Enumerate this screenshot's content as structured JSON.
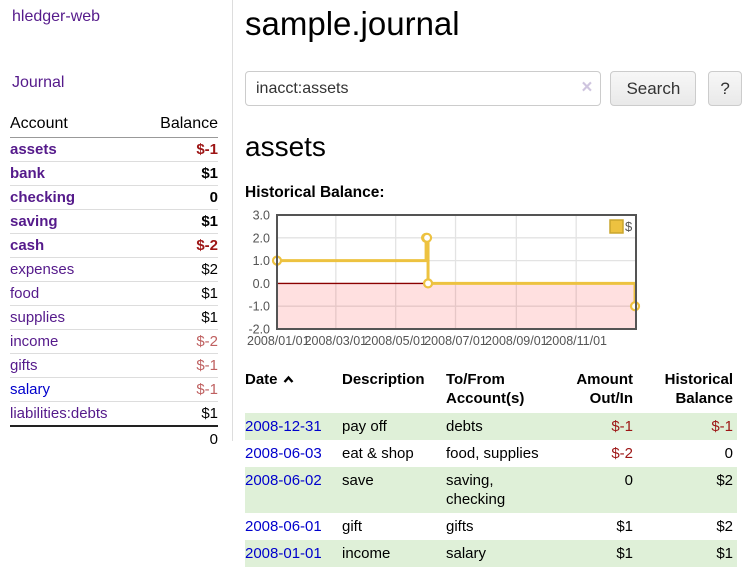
{
  "sidebar": {
    "brand": "hledger-web",
    "nav_journal": "Journal",
    "accounts_table": {
      "account_header": "Account",
      "balance_header": "Balance",
      "rows": [
        {
          "account": "assets",
          "balance": "$-1"
        },
        {
          "account": "bank",
          "balance": "$1"
        },
        {
          "account": "checking",
          "balance": "0"
        },
        {
          "account": "saving",
          "balance": "$1"
        },
        {
          "account": "cash",
          "balance": "$-2"
        },
        {
          "account": "expenses",
          "balance": "$2"
        },
        {
          "account": "food",
          "balance": "$1"
        },
        {
          "account": "supplies",
          "balance": "$1"
        },
        {
          "account": "income",
          "balance": "$-2"
        },
        {
          "account": "gifts",
          "balance": "$-1"
        },
        {
          "account": "salary",
          "balance": "$-1"
        },
        {
          "account": "liabilities:debts",
          "balance": "$1"
        }
      ],
      "total": "0"
    }
  },
  "header": {
    "title": "sample.journal"
  },
  "search": {
    "value": "inacct:assets",
    "clear_glyph": "×",
    "button_label": "Search",
    "help_label": "?"
  },
  "account_page": {
    "heading": "assets",
    "chart_title": "Historical Balance:"
  },
  "chart_data": {
    "type": "line",
    "title": "Historical Balance:",
    "series": [
      {
        "name": "$",
        "color": "#edc240",
        "step": true,
        "points": [
          {
            "date": "2008-01-01",
            "day": 0,
            "value": 1
          },
          {
            "date": "2008-06-01",
            "day": 152,
            "value": 2
          },
          {
            "date": "2008-06-02",
            "day": 153,
            "value": 2
          },
          {
            "date": "2008-06-03",
            "day": 154,
            "value": 0
          },
          {
            "date": "2008-12-31",
            "day": 365,
            "value": -1
          }
        ]
      }
    ],
    "x_ticks": [
      {
        "day": 0,
        "label": "2008/01/01"
      },
      {
        "day": 60,
        "label": "2008/03/01"
      },
      {
        "day": 121,
        "label": "2008/05/01"
      },
      {
        "day": 182,
        "label": "2008/07/01"
      },
      {
        "day": 244,
        "label": "2008/09/01"
      },
      {
        "day": 305,
        "label": "2008/11/01"
      }
    ],
    "x_domain_days": [
      0,
      366
    ],
    "y_ticks": [
      3,
      2,
      1,
      0,
      -1,
      -2
    ],
    "ylim": [
      -2,
      3
    ],
    "grid": true,
    "legend_position": "top-right",
    "zero_line_color": "#8b0000",
    "negative_region_fill": "rgba(255,0,0,0.12)",
    "axis_text_color": "#545454",
    "border_color": "#545454"
  },
  "register": {
    "columns": {
      "date": "Date",
      "description": "Description",
      "accounts": "To/From Account(s)",
      "amount": "Amount Out/In",
      "balance": "Historical Balance"
    },
    "rows": [
      {
        "date": "2008-12-31",
        "description": "pay off",
        "accounts": "debts",
        "amount": "$-1",
        "balance": "$-1"
      },
      {
        "date": "2008-06-03",
        "description": "eat & shop",
        "accounts": "food, supplies",
        "amount": "$-2",
        "balance": "0"
      },
      {
        "date": "2008-06-02",
        "description": "save",
        "accounts": "saving, checking",
        "amount": "0",
        "balance": "$2"
      },
      {
        "date": "2008-06-01",
        "description": "gift",
        "accounts": "gifts",
        "amount": "$1",
        "balance": "$2"
      },
      {
        "date": "2008-01-01",
        "description": "income",
        "accounts": "salary",
        "amount": "$1",
        "balance": "$1"
      }
    ]
  }
}
